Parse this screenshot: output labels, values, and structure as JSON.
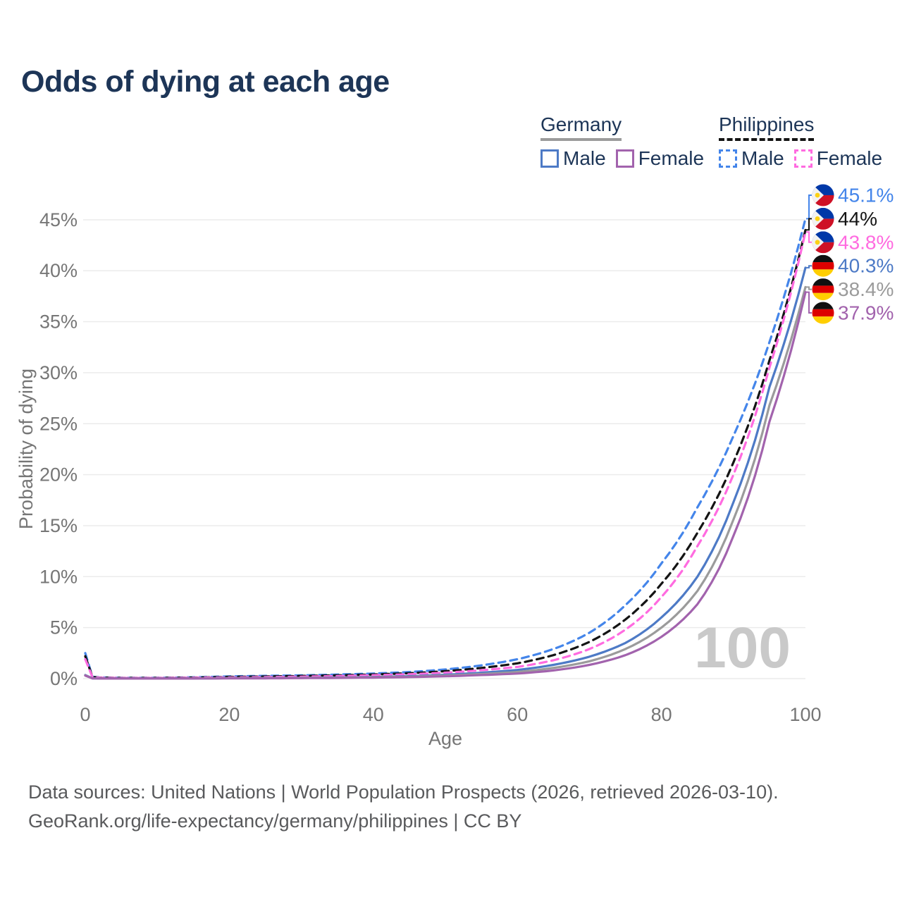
{
  "title": "Odds of dying at each age",
  "legend": {
    "germany": {
      "label": "Germany",
      "male": "Male",
      "female": "Female"
    },
    "philippines": {
      "label": "Philippines",
      "male": "Male",
      "female": "Female"
    }
  },
  "watermark": "100",
  "footer": {
    "line1": "Data sources: United Nations | World Population Prospects (2026, retrieved 2026-03-10).",
    "line2": "GeoRank.org/life-expectancy/germany/philippines | CC BY"
  },
  "colors": {
    "title_text": "#1d3557",
    "legend_text": "#1d3557",
    "axis_text": "#767676",
    "gridline": "#ebebeb",
    "watermark": "#c9c9c9",
    "germany_underline": "#9b9b9b",
    "philippines_underline": "#141414",
    "ph_flag_blue": "#0038a8",
    "ph_flag_red": "#ce1126",
    "ph_flag_yellow": "#fcd116",
    "de_flag_black": "#101010",
    "de_flag_red": "#dd0000",
    "de_flag_gold": "#ffce00"
  },
  "chart_data": {
    "type": "line",
    "title": "Odds of dying at each age",
    "xlabel": "Age",
    "ylabel": "Probability of dying",
    "xlim": [
      0,
      100
    ],
    "ylim_pct": [
      0,
      47
    ],
    "x_ticks": [
      0,
      20,
      40,
      60,
      80,
      100
    ],
    "y_ticks": [
      "0%",
      "5%",
      "10%",
      "15%",
      "20%",
      "25%",
      "30%",
      "35%",
      "40%",
      "45%"
    ],
    "grid": "horizontal",
    "legend_position": "top-right",
    "ages": [
      0,
      1,
      2,
      5,
      10,
      15,
      20,
      25,
      30,
      35,
      40,
      45,
      50,
      55,
      60,
      65,
      70,
      75,
      80,
      85,
      90,
      95,
      100
    ],
    "series": [
      {
        "name": "Philippines Male",
        "country": "philippines",
        "sex": "male",
        "color": "#4485ea",
        "dashed": true,
        "end_label": "45.1%",
        "end_value": 45.1,
        "values_pct": [
          2.5,
          0.18,
          0.12,
          0.08,
          0.08,
          0.13,
          0.22,
          0.27,
          0.32,
          0.4,
          0.5,
          0.65,
          0.9,
          1.3,
          1.9,
          2.9,
          4.5,
          7.2,
          11.3,
          16.8,
          23.8,
          33.0,
          45.1
        ]
      },
      {
        "name": "Philippines Overall",
        "country": "philippines",
        "sex": "overall",
        "color": "#141414",
        "dashed": true,
        "end_label": "44%",
        "end_value": 44.0,
        "values_pct": [
          2.2,
          0.16,
          0.1,
          0.07,
          0.07,
          0.1,
          0.17,
          0.21,
          0.26,
          0.32,
          0.41,
          0.53,
          0.73,
          1.05,
          1.5,
          2.3,
          3.6,
          5.8,
          9.3,
          14.3,
          21.2,
          31.2,
          44.0
        ]
      },
      {
        "name": "Philippines Female",
        "country": "philippines",
        "sex": "female",
        "color": "#ff6be0",
        "dashed": true,
        "end_label": "43.8%",
        "end_value": 43.8,
        "values_pct": [
          1.9,
          0.14,
          0.09,
          0.06,
          0.06,
          0.08,
          0.12,
          0.15,
          0.19,
          0.25,
          0.33,
          0.43,
          0.58,
          0.83,
          1.15,
          1.8,
          2.9,
          4.8,
          8.0,
          13.0,
          20.0,
          30.5,
          43.8
        ]
      },
      {
        "name": "Germany Male",
        "country": "germany",
        "sex": "male",
        "color": "#4d7ac6",
        "dashed": false,
        "end_label": "40.3%",
        "end_value": 40.3,
        "values_pct": [
          0.35,
          0.03,
          0.02,
          0.01,
          0.01,
          0.02,
          0.05,
          0.06,
          0.08,
          0.11,
          0.16,
          0.24,
          0.38,
          0.58,
          0.85,
          1.35,
          2.15,
          3.5,
          6.0,
          10.0,
          17.3,
          28.6,
          40.3
        ]
      },
      {
        "name": "Germany Overall",
        "country": "germany",
        "sex": "overall",
        "color": "#9b9b9b",
        "dashed": false,
        "end_label": "38.4%",
        "end_value": 38.4,
        "values_pct": [
          0.32,
          0.03,
          0.02,
          0.01,
          0.01,
          0.02,
          0.04,
          0.05,
          0.07,
          0.09,
          0.13,
          0.19,
          0.3,
          0.45,
          0.65,
          1.05,
          1.7,
          2.9,
          5.0,
          8.6,
          15.6,
          26.8,
          38.4
        ]
      },
      {
        "name": "Germany Female",
        "country": "germany",
        "sex": "female",
        "color": "#a263ad",
        "dashed": false,
        "end_label": "37.9%",
        "end_value": 37.9,
        "values_pct": [
          0.3,
          0.02,
          0.01,
          0.01,
          0.01,
          0.01,
          0.02,
          0.03,
          0.05,
          0.07,
          0.1,
          0.15,
          0.23,
          0.35,
          0.5,
          0.8,
          1.35,
          2.3,
          4.1,
          7.3,
          14.0,
          25.2,
          37.9
        ]
      }
    ]
  }
}
